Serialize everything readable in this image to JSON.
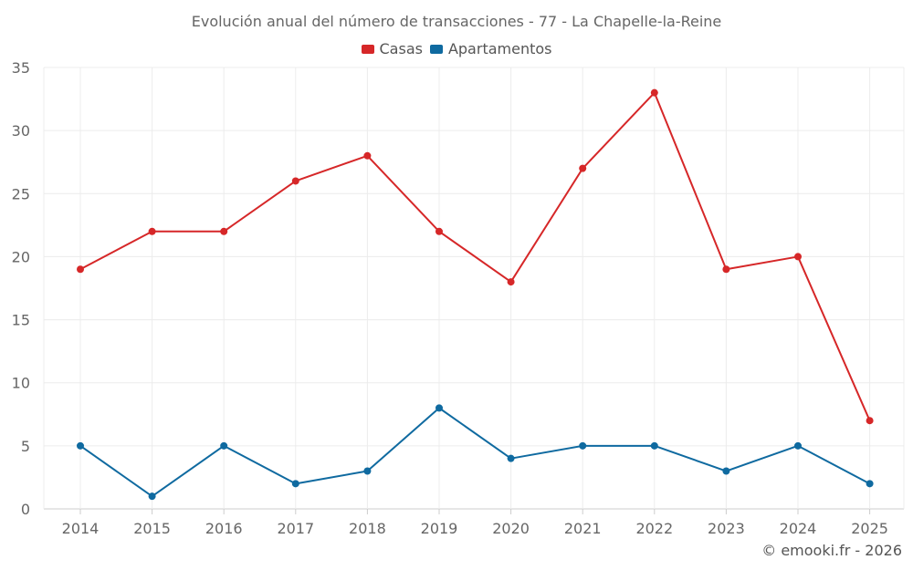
{
  "chart_data": {
    "type": "line",
    "title": "Evolución anual del número de transacciones - 77 - La Chapelle-la-Reine",
    "categories": [
      "2014",
      "2015",
      "2016",
      "2017",
      "2018",
      "2019",
      "2020",
      "2021",
      "2022",
      "2023",
      "2024",
      "2025"
    ],
    "series": [
      {
        "name": "Casas",
        "color": "#d62728",
        "values": [
          19,
          22,
          22,
          26,
          28,
          22,
          18,
          27,
          33,
          19,
          20,
          7
        ]
      },
      {
        "name": "Apartamentos",
        "color": "#0f6aa0",
        "values": [
          5,
          1,
          5,
          2,
          3,
          8,
          4,
          5,
          5,
          3,
          5,
          2
        ]
      }
    ],
    "ylim": [
      0,
      35
    ],
    "yticks": [
      "0",
      "5",
      "10",
      "15",
      "20",
      "25",
      "30",
      "35"
    ],
    "xlabel": "",
    "ylabel": "",
    "grid": true,
    "legend_position": "top"
  },
  "credit": "© emooki.fr - 2026"
}
